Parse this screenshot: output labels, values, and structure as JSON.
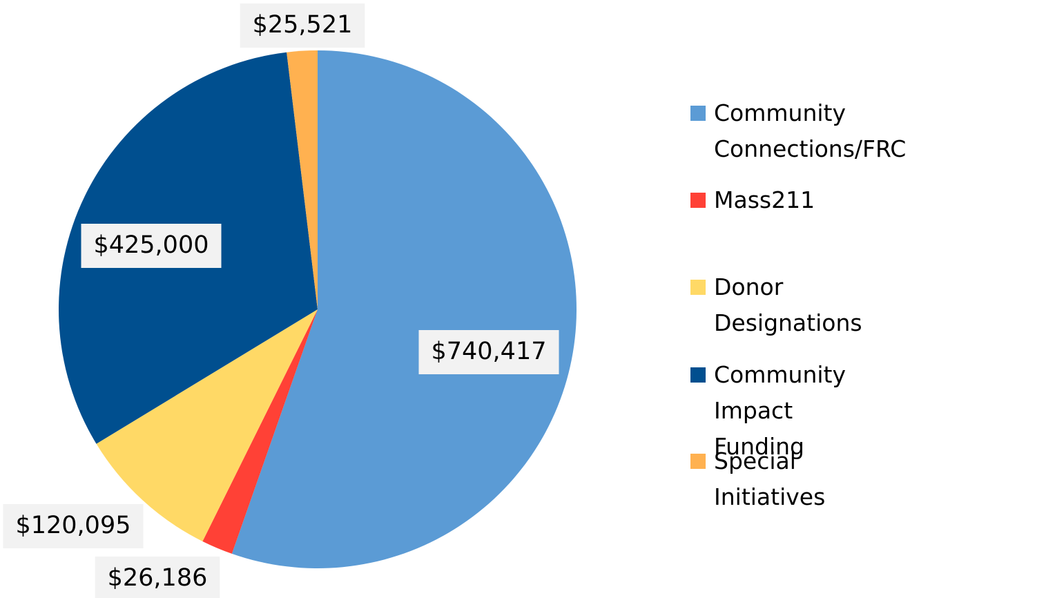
{
  "chart_data": {
    "type": "pie",
    "categories": [
      "Community Connections/FRC",
      "Mass211",
      "Donor Designations",
      "Community Impact Funding",
      "Special Initiatives"
    ],
    "values": [
      740417,
      26186,
      120095,
      425000,
      25521
    ],
    "value_labels": [
      "$740,417",
      "$26,186",
      "$120,095",
      "$425,000",
      "$25,521"
    ],
    "colors": [
      "#5b9bd5",
      "#ff4136",
      "#ffd966",
      "#004f8f",
      "#ffb150"
    ],
    "legend": "right"
  }
}
